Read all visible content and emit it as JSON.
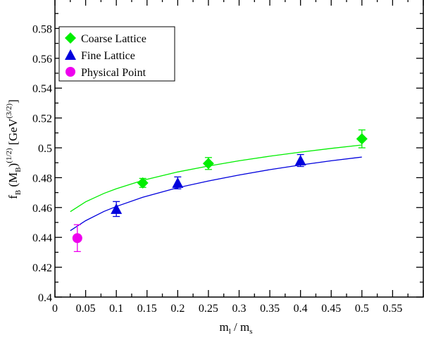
{
  "chart_data": {
    "type": "scatter",
    "xlabel": {
      "main": "m",
      "sub1": "l",
      "slash": " / m",
      "sub2": "s"
    },
    "ylabel": {
      "f": "f",
      "fsub": "B",
      "mid": " (M",
      "msub": "B",
      "close": ")",
      "exp": "(1/2)",
      "unit": " [GeV",
      "unitexp": "(3/2)",
      "end": "]"
    },
    "xlim": [
      0,
      0.6
    ],
    "ylim": [
      0.4,
      0.6
    ],
    "xticks": [
      0,
      0.05,
      0.1,
      0.15,
      0.2,
      0.25,
      0.3,
      0.35,
      0.4,
      0.45,
      0.5,
      0.55
    ],
    "xtick_labels": [
      "0",
      "0.05",
      "0.1",
      "0.15",
      "0.2",
      "0.25",
      "0.3",
      "0.35",
      "0.4",
      "0.45",
      "0.5",
      "0.55"
    ],
    "yticks": [
      0.4,
      0.42,
      0.44,
      0.46,
      0.48,
      0.5,
      0.52,
      0.54,
      0.56,
      0.58
    ],
    "ytick_labels": [
      "0.4",
      "0.42",
      "0.44",
      "0.46",
      "0.48",
      "0.5",
      "0.52",
      "0.54",
      "0.56",
      "0.58"
    ],
    "grid": false,
    "legend_position": "top-left",
    "series": [
      {
        "name": "Coarse Lattice",
        "marker": "diamond",
        "color": "#00ee00",
        "points": [
          {
            "x": 0.143,
            "y": 0.4765,
            "err": 0.003
          },
          {
            "x": 0.25,
            "y": 0.4895,
            "err": 0.004
          },
          {
            "x": 0.5,
            "y": 0.506,
            "err": 0.006
          }
        ]
      },
      {
        "name": "Fine Lattice",
        "marker": "triangle",
        "color": "#0000dd",
        "points": [
          {
            "x": 0.1,
            "y": 0.459,
            "err": 0.005
          },
          {
            "x": 0.2,
            "y": 0.4765,
            "err": 0.004
          },
          {
            "x": 0.4,
            "y": 0.4915,
            "err": 0.004
          }
        ]
      },
      {
        "name": "Physical Point",
        "marker": "circle",
        "color": "#ee00ee",
        "points": [
          {
            "x": 0.0365,
            "y": 0.4395,
            "err": 0.009
          }
        ]
      }
    ],
    "fit_curves": [
      {
        "color": "#00ee00",
        "x": [
          0.025,
          0.05,
          0.08,
          0.1,
          0.143,
          0.2,
          0.25,
          0.3,
          0.35,
          0.4,
          0.45,
          0.5
        ],
        "y": [
          0.4572,
          0.4638,
          0.4695,
          0.4726,
          0.4782,
          0.4838,
          0.4878,
          0.4913,
          0.4944,
          0.4971,
          0.4996,
          0.5019
        ]
      },
      {
        "color": "#0000dd",
        "x": [
          0.025,
          0.05,
          0.08,
          0.1,
          0.143,
          0.2,
          0.25,
          0.3,
          0.35,
          0.4,
          0.45,
          0.5
        ],
        "y": [
          0.4445,
          0.4512,
          0.4574,
          0.4607,
          0.4669,
          0.4733,
          0.4778,
          0.4818,
          0.4854,
          0.4885,
          0.4913,
          0.4938
        ]
      }
    ]
  }
}
